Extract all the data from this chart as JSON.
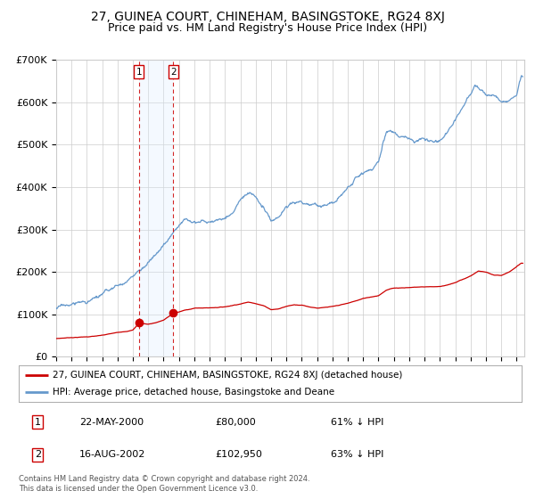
{
  "title": "27, GUINEA COURT, CHINEHAM, BASINGSTOKE, RG24 8XJ",
  "subtitle": "Price paid vs. HM Land Registry's House Price Index (HPI)",
  "ylim": [
    0,
    700000
  ],
  "xlim_start": 1995.0,
  "xlim_end": 2025.5,
  "yticks": [
    0,
    100000,
    200000,
    300000,
    400000,
    500000,
    600000,
    700000
  ],
  "ytick_labels": [
    "£0",
    "£100K",
    "£200K",
    "£300K",
    "£400K",
    "£500K",
    "£600K",
    "£700K"
  ],
  "xticks": [
    1995,
    1996,
    1997,
    1998,
    1999,
    2000,
    2001,
    2002,
    2003,
    2004,
    2005,
    2006,
    2007,
    2008,
    2009,
    2010,
    2011,
    2012,
    2013,
    2014,
    2015,
    2016,
    2017,
    2018,
    2019,
    2020,
    2021,
    2022,
    2023,
    2024,
    2025
  ],
  "hpi_color": "#6699cc",
  "price_color": "#cc0000",
  "background_color": "#ffffff",
  "grid_color": "#cccccc",
  "sale1_date": 2000.39,
  "sale1_price": 80000,
  "sale2_date": 2002.62,
  "sale2_price": 102950,
  "shade_color": "#ddeeff",
  "dashed_color": "#cc0000",
  "legend_entries": [
    "27, GUINEA COURT, CHINEHAM, BASINGSTOKE, RG24 8XJ (detached house)",
    "HPI: Average price, detached house, Basingstoke and Deane"
  ],
  "table_rows": [
    [
      "1",
      "22-MAY-2000",
      "£80,000",
      "61% ↓ HPI"
    ],
    [
      "2",
      "16-AUG-2002",
      "£102,950",
      "63% ↓ HPI"
    ]
  ],
  "footer": "Contains HM Land Registry data © Crown copyright and database right 2024.\nThis data is licensed under the Open Government Licence v3.0.",
  "title_fontsize": 10,
  "subtitle_fontsize": 9,
  "tick_fontsize": 8,
  "legend_fontsize": 7.5,
  "table_fontsize": 8,
  "footer_fontsize": 6
}
